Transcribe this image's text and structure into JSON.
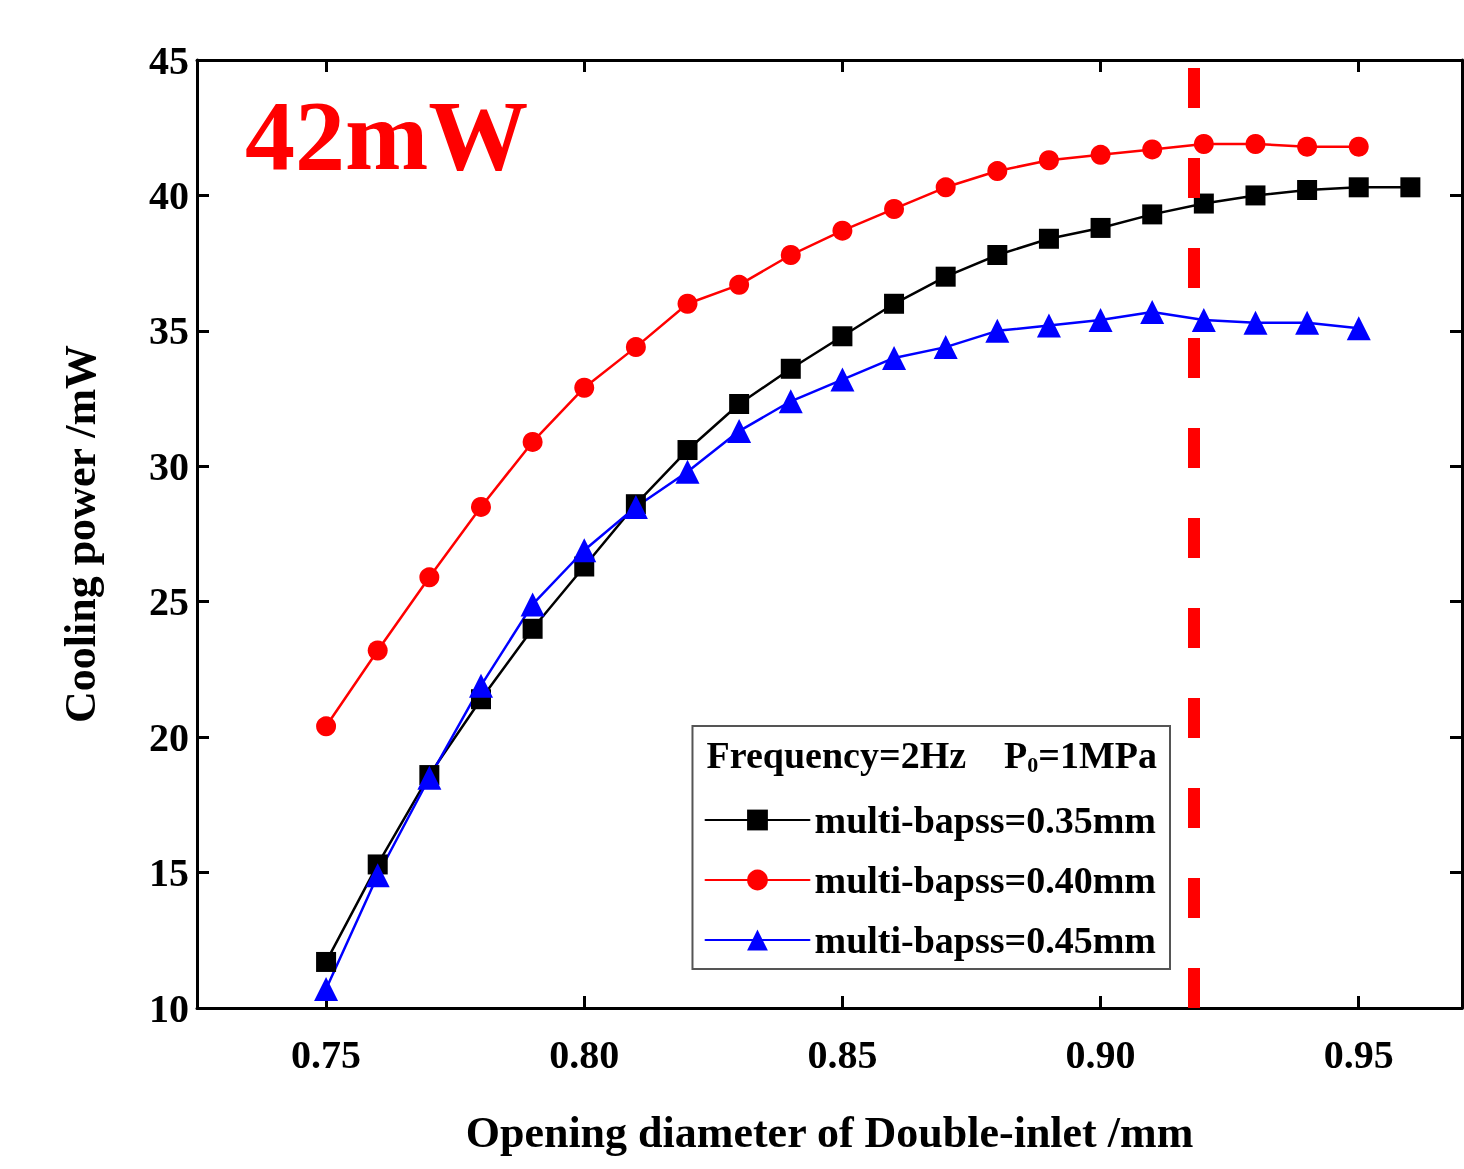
{
  "chart_data": {
    "type": "line",
    "xlabel": "Opening diameter of Double-inlet /mm",
    "ylabel": "Cooling power /mW",
    "legend_title": "Frequency=2Hz    P$_{0}$=1MPa",
    "annotations": [
      "42mW"
    ],
    "xlim": [
      0.725,
      0.97
    ],
    "xticks": [
      {
        "value": 0.75,
        "label": "0.75"
      },
      {
        "value": 0.8,
        "label": "0.80"
      },
      {
        "value": 0.85,
        "label": "0.85"
      },
      {
        "value": 0.9,
        "label": "0.90"
      },
      {
        "value": 0.95,
        "label": "0.95"
      }
    ],
    "ylim": [
      10,
      45
    ],
    "yticks": [
      10,
      15,
      20,
      25,
      30,
      35,
      40,
      45
    ],
    "grid": false,
    "legend": "bottom right",
    "line_style": "solid",
    "ref_lines": [
      {
        "axis": "x",
        "value": 0.918,
        "label": null,
        "color": "#ff0000",
        "line_style": "dashed"
      }
    ],
    "series": [
      {
        "name": "multi-bapss=0.35mm",
        "color": "#000000",
        "marker": "square",
        "x": [
          0.75,
          0.76,
          0.77,
          0.78,
          0.79,
          0.8,
          0.81,
          0.82,
          0.83,
          0.84,
          0.85,
          0.86,
          0.87,
          0.88,
          0.89,
          0.9,
          0.91,
          0.92,
          0.93,
          0.94,
          0.95,
          0.96
        ],
        "values": [
          11.7,
          15.3,
          18.6,
          21.4,
          24.0,
          26.3,
          28.6,
          30.6,
          32.3,
          33.6,
          34.8,
          36.0,
          37.0,
          37.8,
          38.4,
          38.8,
          39.3,
          39.7,
          40.0,
          40.2,
          40.3,
          40.3
        ]
      },
      {
        "name": "multi-bapss=0.40mm",
        "color": "#ff0000",
        "marker": "circle",
        "x": [
          0.75,
          0.76,
          0.77,
          0.78,
          0.79,
          0.8,
          0.81,
          0.82,
          0.83,
          0.84,
          0.85,
          0.86,
          0.87,
          0.88,
          0.89,
          0.9,
          0.91,
          0.92,
          0.93,
          0.94,
          0.95
        ],
        "values": [
          20.4,
          23.2,
          25.9,
          28.5,
          30.9,
          32.9,
          34.4,
          36.0,
          36.7,
          37.8,
          38.7,
          39.5,
          40.3,
          40.9,
          41.3,
          41.5,
          41.7,
          41.9,
          41.9,
          41.8,
          41.8
        ]
      },
      {
        "name": "multi-bapss=0.45mm",
        "color": "#0000ff",
        "marker": "triangle",
        "x": [
          0.75,
          0.76,
          0.77,
          0.78,
          0.79,
          0.8,
          0.81,
          0.82,
          0.83,
          0.84,
          0.85,
          0.86,
          0.87,
          0.88,
          0.89,
          0.9,
          0.91,
          0.92,
          0.93,
          0.94,
          0.95
        ],
        "values": [
          10.7,
          14.9,
          18.5,
          21.9,
          24.9,
          26.9,
          28.5,
          29.8,
          31.3,
          32.4,
          33.2,
          34.0,
          34.4,
          35.0,
          35.2,
          35.4,
          35.7,
          35.4,
          35.3,
          35.3,
          35.1
        ]
      }
    ]
  }
}
